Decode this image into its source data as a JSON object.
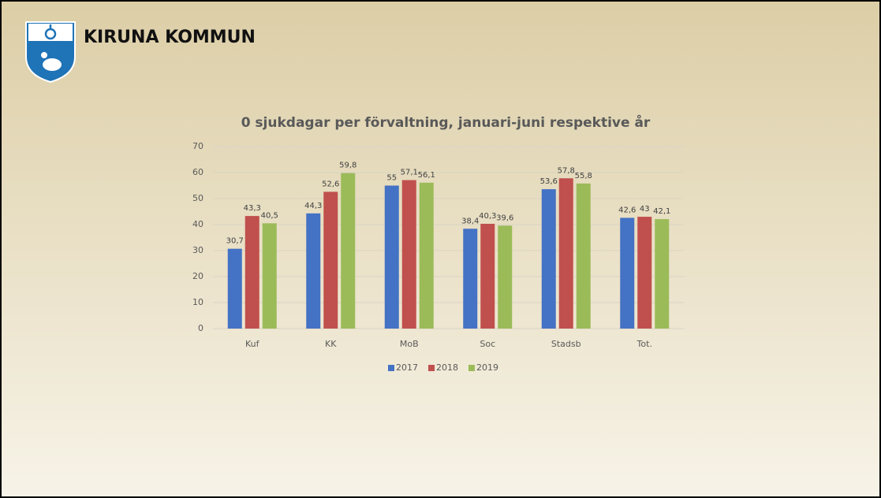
{
  "header": {
    "title": "KIRUNA KOMMUN"
  },
  "chart_data": {
    "type": "bar",
    "title": "0 sjukdagar per förvaltning, januari-juni respektive år",
    "categories": [
      "Kuf",
      "KK",
      "MoB",
      "Soc",
      "Stadsb",
      "Tot."
    ],
    "series": [
      {
        "name": "2017",
        "color": "#4472c4",
        "values": [
          30.7,
          44.3,
          55,
          38.4,
          53.6,
          42.6
        ],
        "value_labels": [
          "30,7",
          "44,3",
          "55",
          "38,4",
          "53,6",
          "42,6"
        ]
      },
      {
        "name": "2018",
        "color": "#c0504d",
        "values": [
          43.3,
          52.6,
          57.1,
          40.3,
          57.8,
          43
        ],
        "value_labels": [
          "43,3",
          "52,6",
          "57,1",
          "40,3",
          "57,8",
          "43"
        ]
      },
      {
        "name": "2019",
        "color": "#9bbb59",
        "values": [
          40.5,
          59.8,
          56.1,
          39.6,
          55.8,
          42.1
        ],
        "value_labels": [
          "40,5",
          "59,8",
          "56,1",
          "39,6",
          "55,8",
          "42,1"
        ]
      }
    ],
    "ylim": [
      0,
      70
    ],
    "yticks": [
      0,
      10,
      20,
      30,
      40,
      50,
      60,
      70
    ],
    "grid": true,
    "legend": "bottom"
  }
}
